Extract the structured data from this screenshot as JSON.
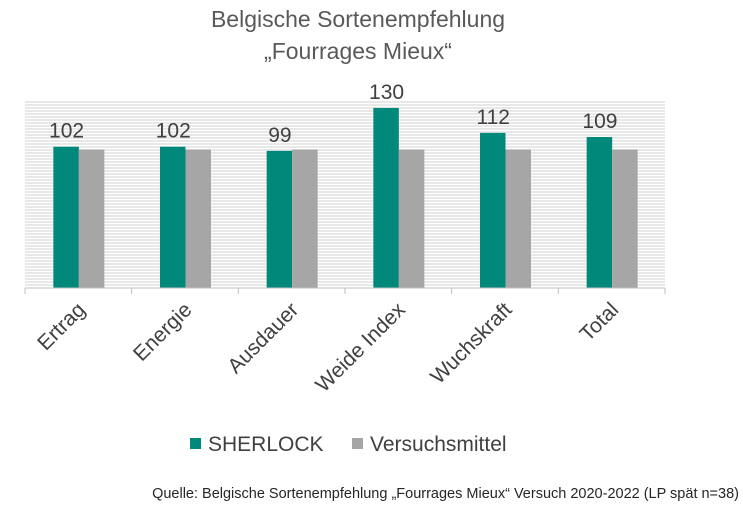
{
  "chart_data": {
    "type": "bar",
    "title_line1": "Belgische Sortenempfehlung",
    "title_line2": "„Fourrages Mieux“",
    "categories": [
      "Ertrag",
      "Energie",
      "Ausdauer",
      "Weide Index",
      "Wuchskraft",
      "Total"
    ],
    "series": [
      {
        "name": "SHERLOCK",
        "color": "#00897b",
        "values": [
          102,
          102,
          99,
          130,
          112,
          109
        ]
      },
      {
        "name": "Versuchsmittel",
        "color": "#a6a6a6",
        "values": [
          100,
          100,
          100,
          100,
          100,
          100
        ]
      }
    ],
    "data_labels": [
      "102",
      "102",
      "99",
      "130",
      "112",
      "109"
    ],
    "ylim": [
      0,
      135
    ],
    "grid": true,
    "legend_position": "bottom",
    "source": "Quelle: Belgische Sortenempfehlung „Fourrages Mieux“ Versuch 2020-2022 (LP spät n=38)"
  }
}
